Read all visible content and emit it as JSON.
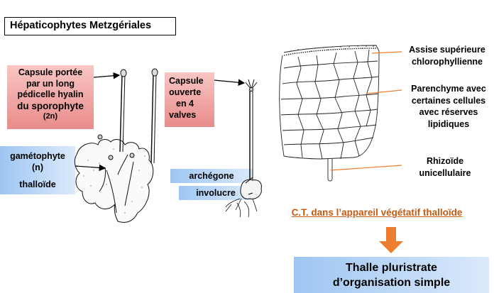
{
  "title": "Hépaticophytes Metzgériales",
  "labels": {
    "capsule_portee": [
      "Capsule portée",
      "par un long",
      "pédicelle hyalin",
      "du sporophyte",
      "(2n)"
    ],
    "gametophyte": [
      "gamétophyte",
      "(n)",
      "thalloïde"
    ],
    "capsule_ouverte": [
      "Capsule",
      "ouverte",
      "en 4",
      "valves"
    ],
    "archegone": "archégone",
    "involucre": "involucre"
  },
  "annotations": {
    "assise": [
      "Assise supérieure",
      "chlorophyllienne"
    ],
    "parenchyme": [
      "Parenchyme avec",
      "certaines cellules",
      "avec réserves",
      "lipidiques"
    ],
    "rhizoide": [
      "Rhizoïde",
      "unicellulaire"
    ]
  },
  "caption": "C.T. dans l’appareil végétatif thalloïde",
  "conclusion": [
    "Thalle pluristrate",
    "d’organisation simple"
  ],
  "colors": {
    "caption": "#c55a11",
    "arrow": "#ed7d31",
    "pink": "#e88c8a",
    "blue": "#9ec6f2"
  }
}
